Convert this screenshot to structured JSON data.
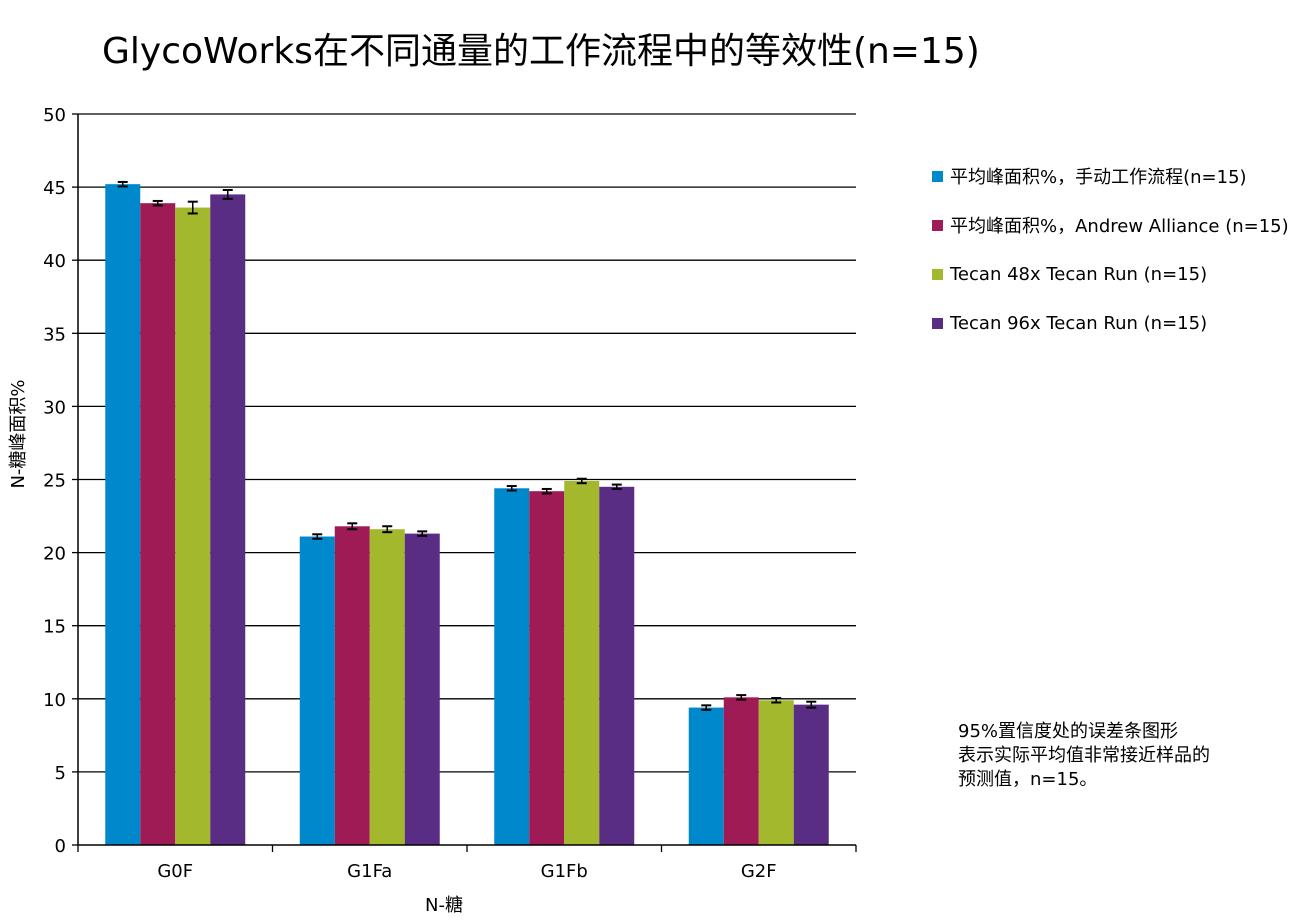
{
  "chart_data": {
    "type": "bar",
    "title": "GlycoWorks在不同通量的工作流程中的等效性(n=15)",
    "xlabel": "N-糖",
    "ylabel": "N-糖峰面积%",
    "ylim": [
      0,
      50
    ],
    "yticks": [
      0,
      5,
      10,
      15,
      20,
      25,
      30,
      35,
      40,
      45,
      50
    ],
    "grid": "horizontal",
    "legend_position": "right",
    "error_bars": true,
    "categories": [
      "G0F",
      "G1Fa",
      "G1Fb",
      "G2F"
    ],
    "series": [
      {
        "name": "平均峰面积%，手动工作流程(n=15)",
        "color": "#0088cc",
        "values": [
          45.2,
          21.1,
          24.4,
          9.4
        ],
        "errors": [
          0.05,
          0.05,
          0.05,
          0.05
        ]
      },
      {
        "name": "平均峰面积%，Andrew Alliance (n=15)",
        "color": "#9e1b55",
        "values": [
          43.9,
          21.8,
          24.2,
          10.1
        ],
        "errors": [
          0.05,
          0.1,
          0.05,
          0.05
        ]
      },
      {
        "name": "Tecan 48x Tecan Run (n=15)",
        "color": "#a3b82c",
        "values": [
          43.6,
          21.6,
          24.9,
          9.9
        ],
        "errors": [
          0.3,
          0.1,
          0.05,
          0.05
        ]
      },
      {
        "name": "Tecan 96x Tecan Run (n=15)",
        "color": "#5a2d84",
        "values": [
          44.5,
          21.3,
          24.5,
          9.6
        ],
        "errors": [
          0.2,
          0.05,
          0.05,
          0.1
        ]
      }
    ]
  },
  "note": {
    "line1": "95%置信度处的误差条图形",
    "line2": "表示实际平均值非常接近样品的",
    "line3": "预测值，n=15。"
  }
}
